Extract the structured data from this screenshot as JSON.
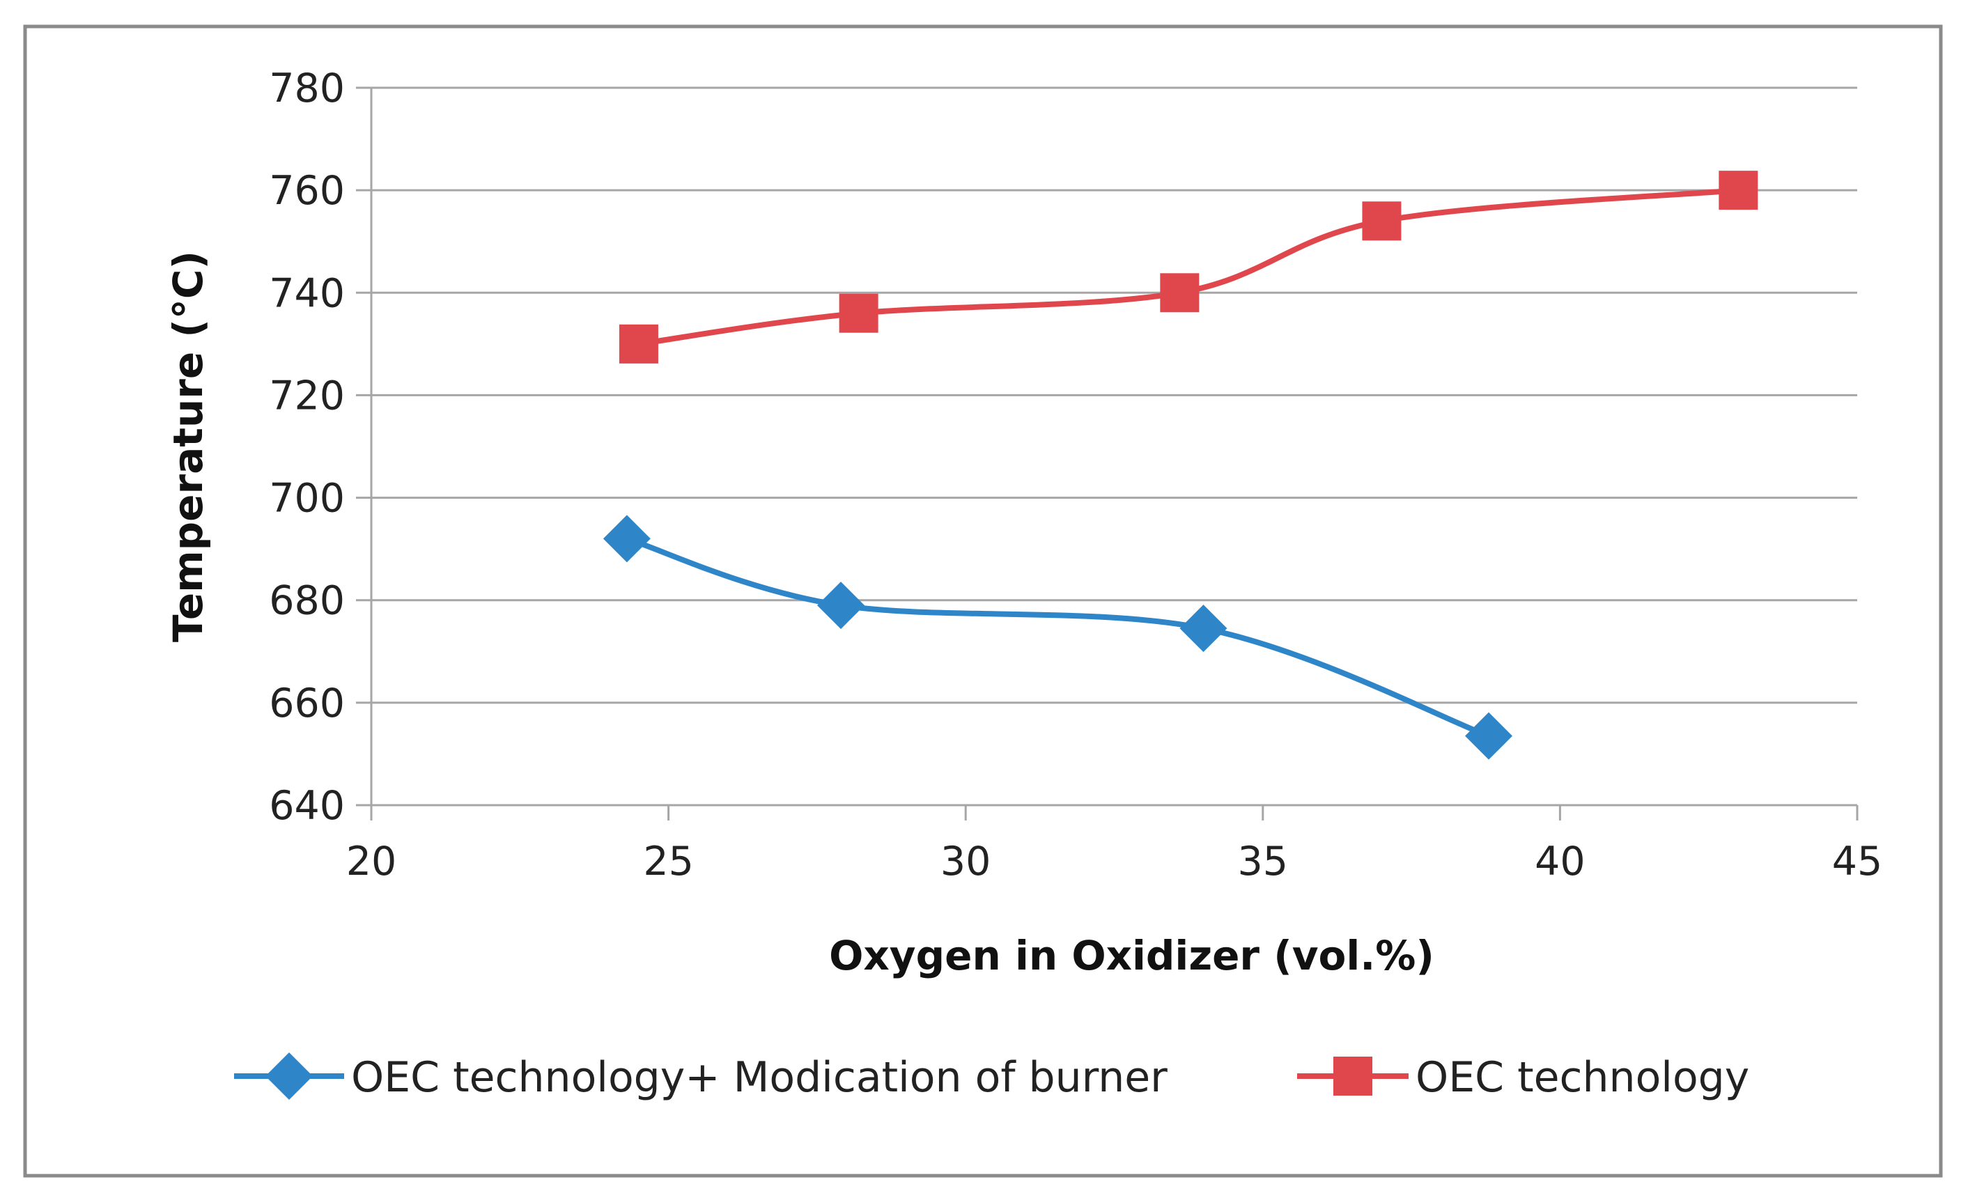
{
  "chart_data": {
    "type": "line",
    "title": "",
    "xlabel": "Oxygen in Oxidizer (vol.%)",
    "ylabel": "Temperature (°C)",
    "xlim": [
      20,
      45
    ],
    "ylim": [
      640,
      780
    ],
    "xticks": [
      20,
      25,
      30,
      35,
      40,
      45
    ],
    "yticks": [
      640,
      660,
      680,
      700,
      720,
      740,
      760,
      780
    ],
    "grid": "horizontal",
    "legend_position": "bottom",
    "series": [
      {
        "name": "OEC technology+ Modication of burner",
        "color": "#2E86C9",
        "marker": "diamond",
        "smooth": true,
        "x": [
          24.3,
          27.9,
          34.0,
          38.8
        ],
        "y": [
          692,
          679,
          674.5,
          653.5
        ]
      },
      {
        "name": "OEC technology",
        "color": "#E0474C",
        "marker": "square",
        "smooth": true,
        "x": [
          24.5,
          28.2,
          33.6,
          37.0,
          43.0
        ],
        "y": [
          730,
          736,
          740,
          754,
          760
        ]
      }
    ]
  }
}
